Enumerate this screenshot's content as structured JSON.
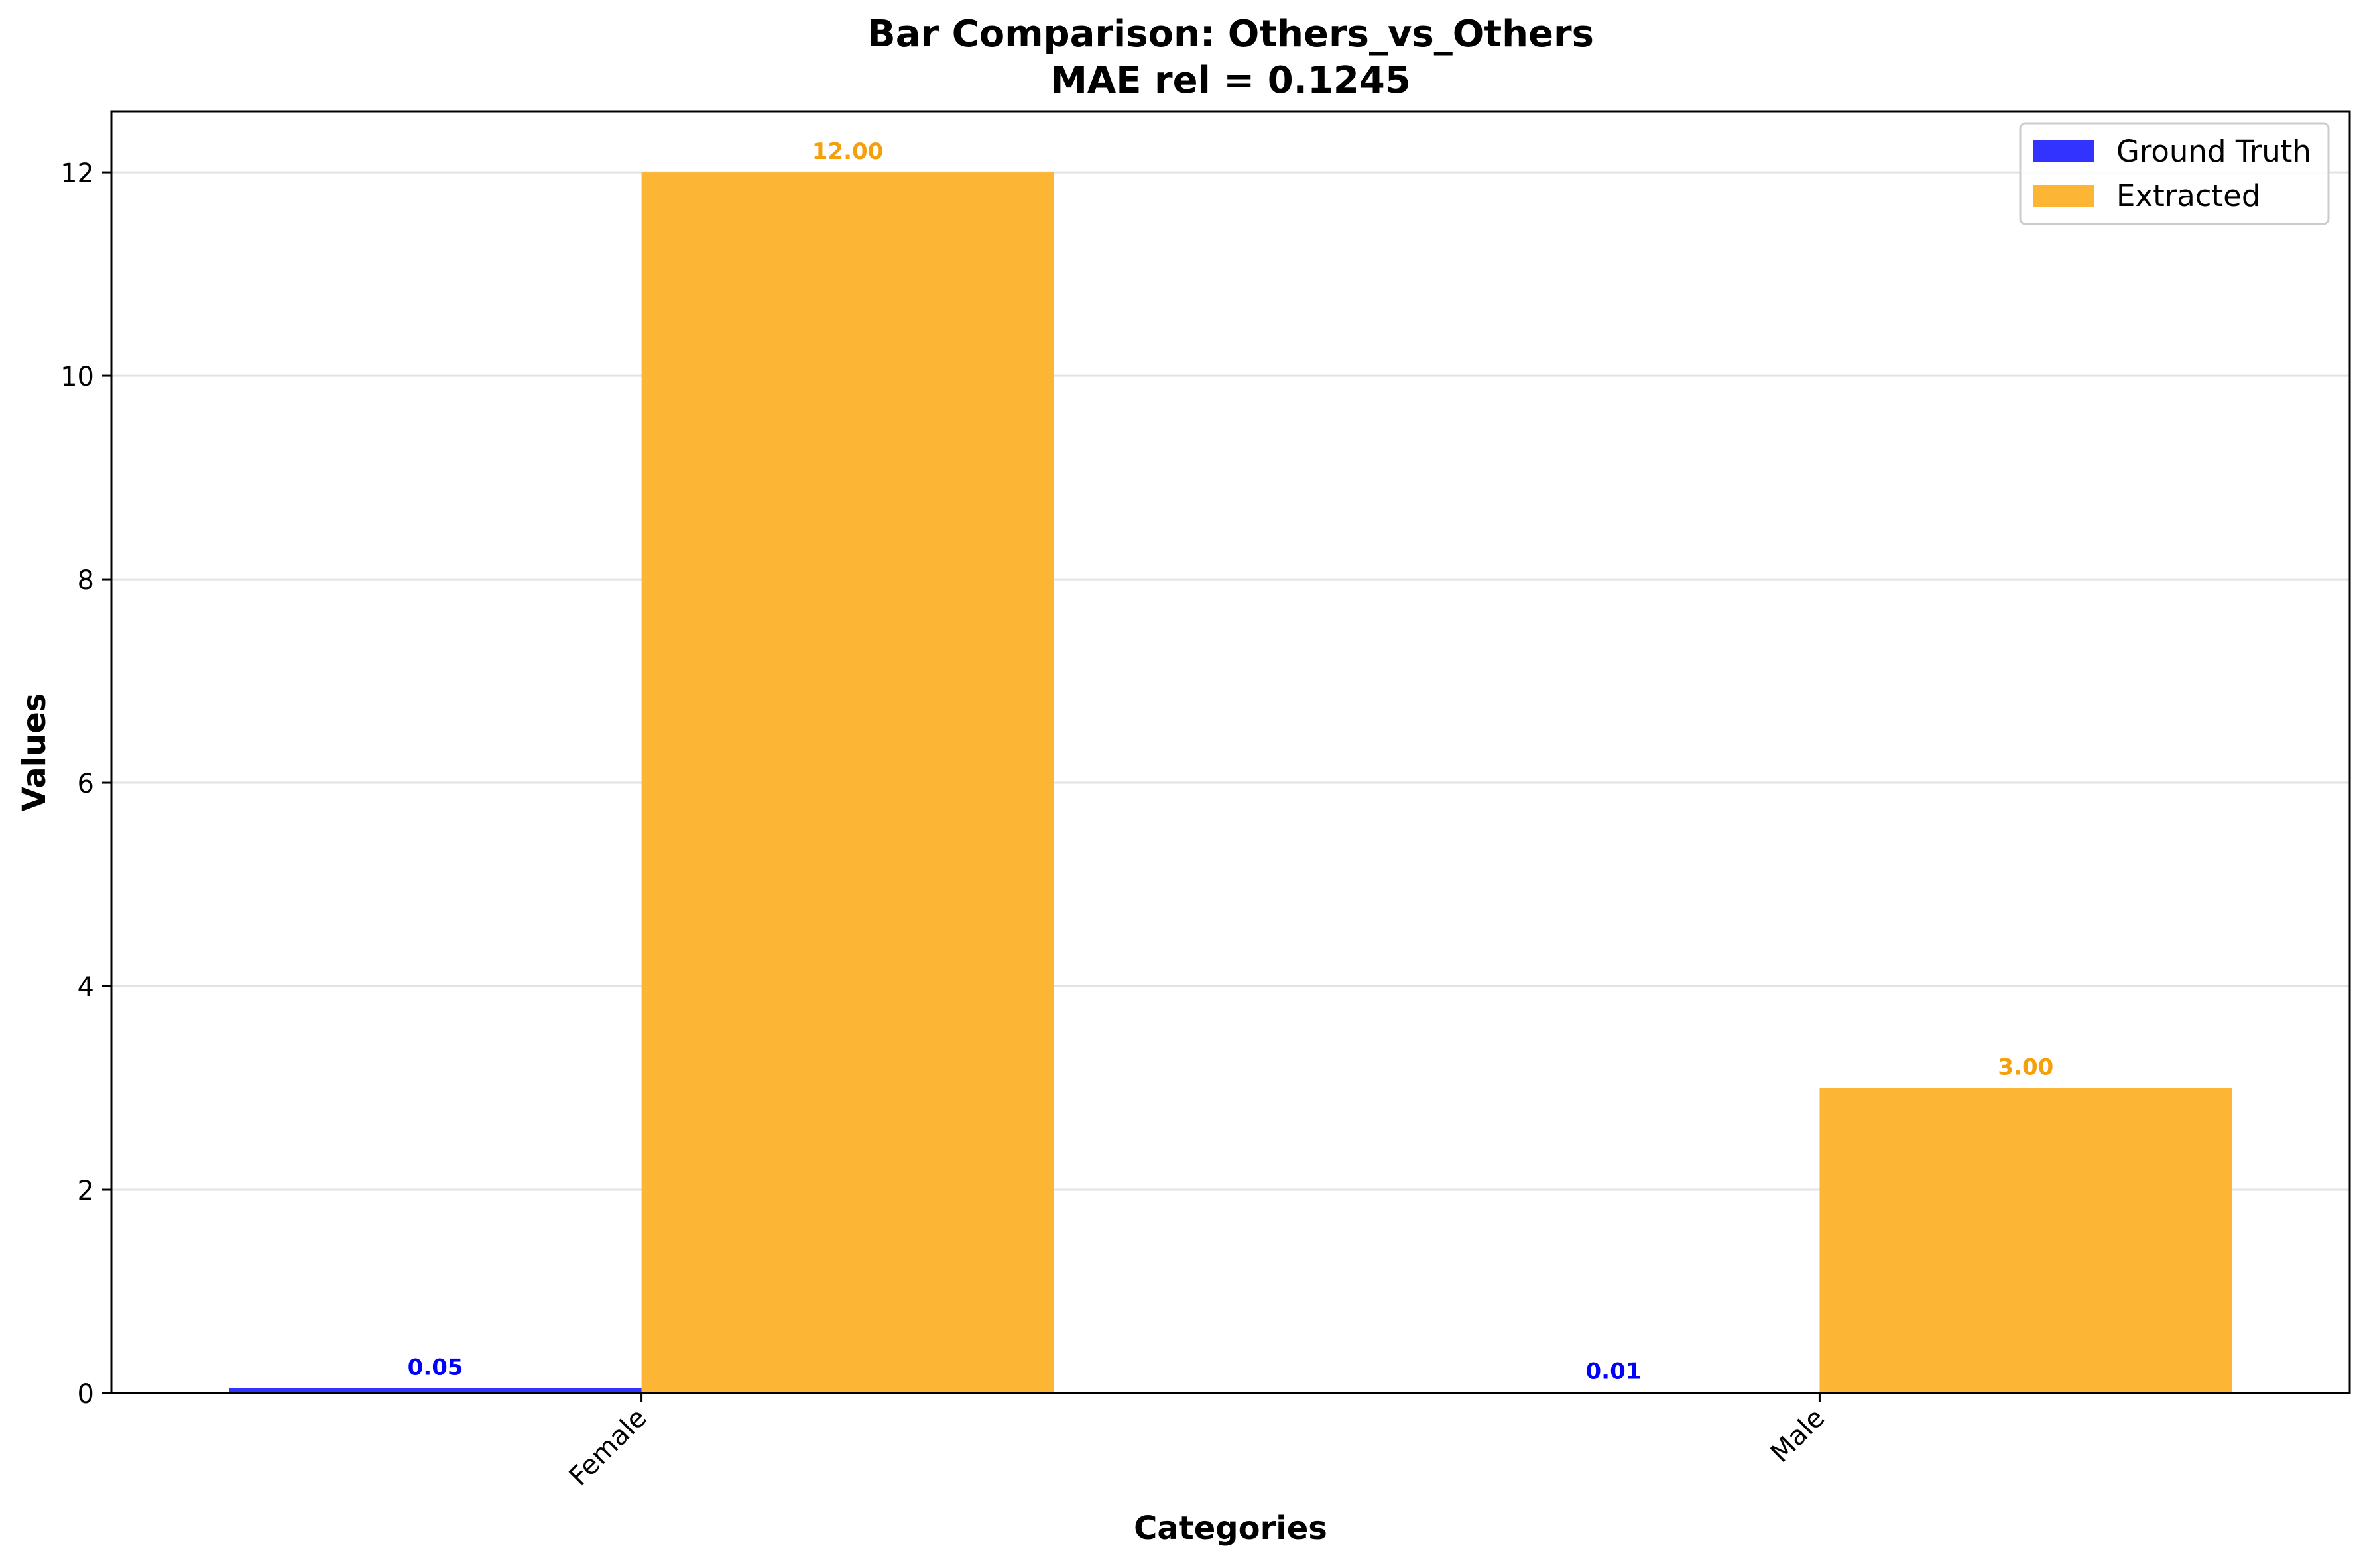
{
  "chart_data": {
    "type": "bar",
    "title_line1": "Bar Comparison: Others_vs_Others",
    "title_line2": "MAE rel = 0.1245",
    "xlabel": "Categories",
    "ylabel": "Values",
    "categories": [
      "Female",
      "Male"
    ],
    "series": [
      {
        "name": "Ground Truth",
        "color": "#3333ff",
        "label_color": "#0000ff",
        "values": [
          0.05,
          0.01
        ],
        "value_labels": [
          "0.05",
          "0.01"
        ]
      },
      {
        "name": "Extracted",
        "color": "#fdb535",
        "label_color": "#f5a00a",
        "values": [
          12.0,
          3.0
        ],
        "value_labels": [
          "12.00",
          "3.00"
        ]
      }
    ],
    "ylim": [
      0,
      12.6
    ],
    "yticks": [
      0,
      2,
      4,
      6,
      8,
      10,
      12
    ],
    "ytick_labels": [
      "0",
      "2",
      "4",
      "6",
      "8",
      "10",
      "12"
    ],
    "grid": "horizontal",
    "legend_position": "top-right"
  }
}
